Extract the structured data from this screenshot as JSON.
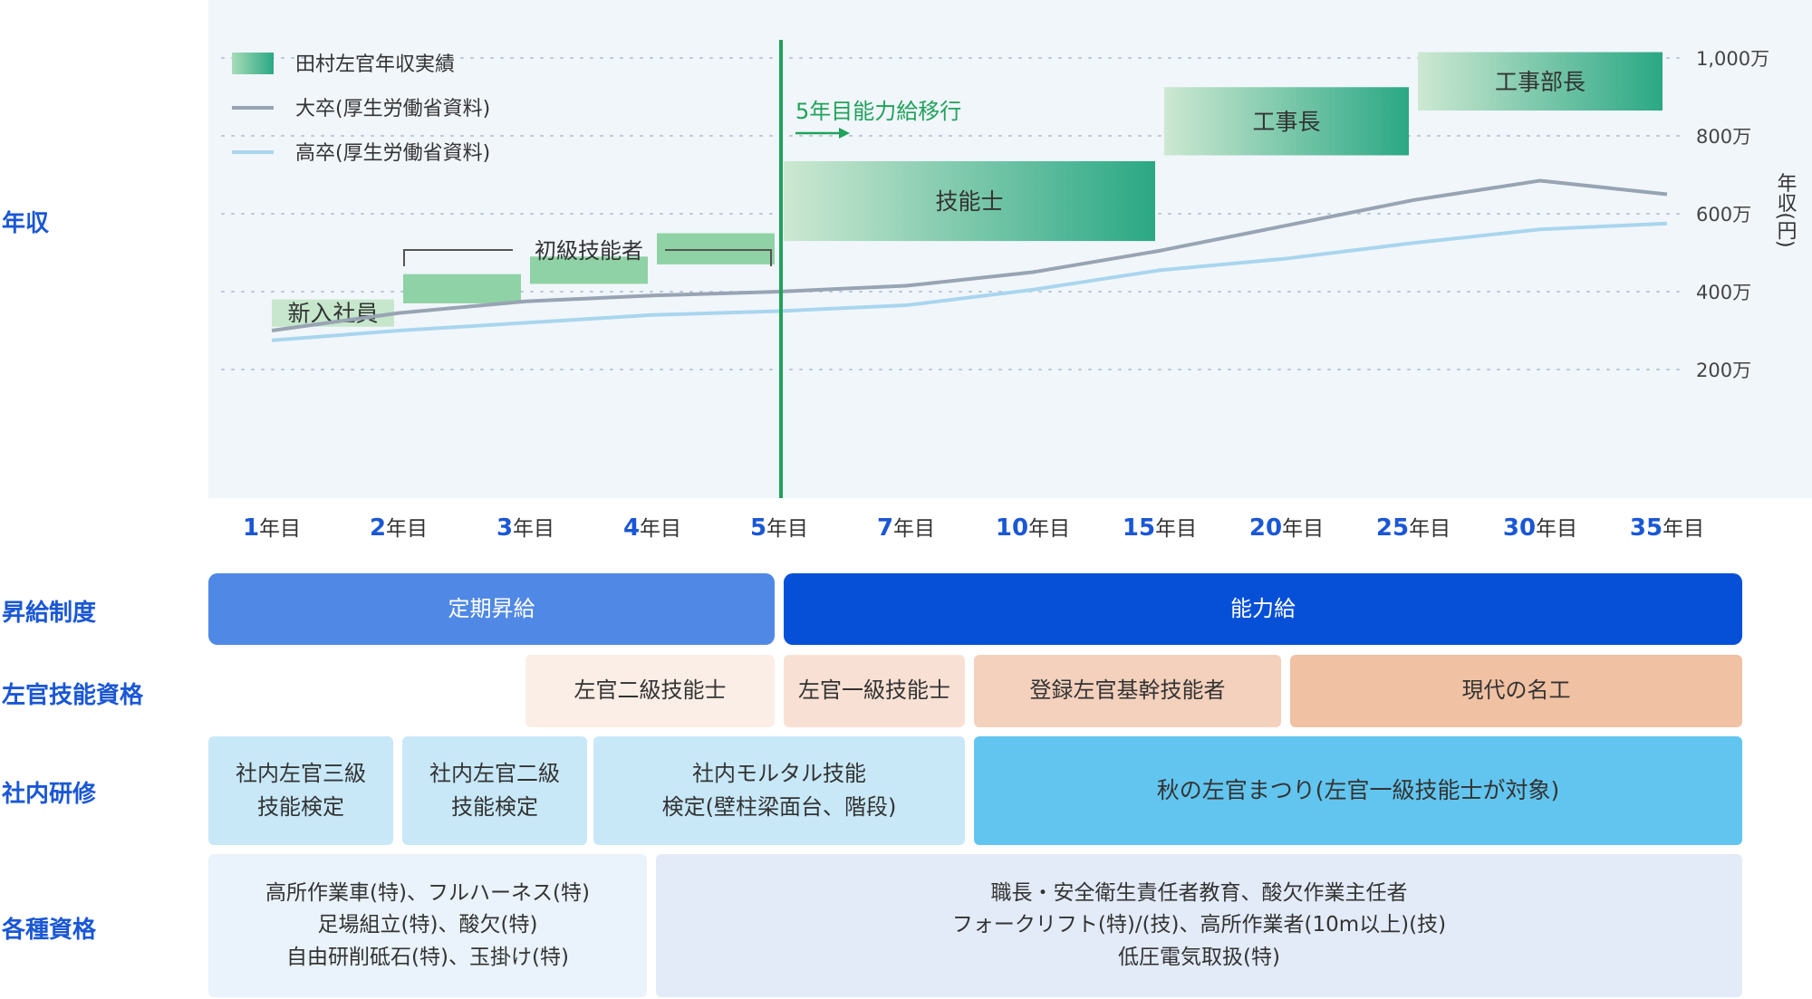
{
  "row_labels": {
    "income": "年収",
    "raise_system": "昇給制度",
    "skill_qualification": "左官技能資格",
    "training": "社内研修",
    "certifications": "各種資格"
  },
  "chart_data": {
    "type": "line",
    "x_categories": [
      "1年目",
      "2年目",
      "3年目",
      "4年目",
      "5年目",
      "7年目",
      "10年目",
      "15年目",
      "20年目",
      "25年目",
      "30年目",
      "35年目"
    ],
    "x_numbers": [
      "1",
      "2",
      "3",
      "4",
      "5",
      "7",
      "10",
      "15",
      "20",
      "25",
      "30",
      "35"
    ],
    "x_suffix": "年目",
    "y_ticks": [
      "200万",
      "400万",
      "600万",
      "800万",
      "1,000万"
    ],
    "y_tick_values": [
      200,
      400,
      600,
      800,
      1000
    ],
    "ylim": [
      100,
      1100
    ],
    "ylabel": "年収(円)",
    "grid": "dotted horizontal",
    "legend_position": "top-left",
    "legend": [
      {
        "name": "田村左官年収実績",
        "color": "#58b98a"
      },
      {
        "name": "大卒(厚生労働省資料)",
        "color": "#98a4b3"
      },
      {
        "name": "高卒(厚生労働省資料)",
        "color": "#a9d5ee"
      }
    ],
    "series": [
      {
        "name": "大卒(厚生労働省資料)",
        "color": "#98a4b3",
        "values": [
          300,
          345,
          375,
          390,
          400,
          415,
          450,
          505,
          570,
          635,
          685,
          650
        ]
      },
      {
        "name": "高卒(厚生労働省資料)",
        "color": "#a9d5ee",
        "values": [
          275,
          300,
          320,
          340,
          350,
          365,
          405,
          455,
          485,
          525,
          560,
          575
        ]
      }
    ],
    "tamura_ranges": [
      {
        "label": "新入社員",
        "x_from": "1年目",
        "x_to": "2年目",
        "low": 310,
        "high": 380
      },
      {
        "label": "",
        "x_from": "2年目",
        "x_to": "3年目",
        "low": 370,
        "high": 445
      },
      {
        "label": "",
        "x_from": "3年目",
        "x_to": "4年目",
        "low": 420,
        "high": 490
      },
      {
        "label": "",
        "x_from": "4年目",
        "x_to": "5年目",
        "low": 470,
        "high": 550
      },
      {
        "label": "技能士",
        "x_from": "5年目",
        "x_to": "15年目",
        "low": 530,
        "high": 735
      },
      {
        "label": "工事長",
        "x_from": "15年目",
        "x_to": "25年目",
        "low": 750,
        "high": 925
      },
      {
        "label": "工事部長",
        "x_from": "25年目",
        "x_to": "35年目",
        "low": 865,
        "high": 1015
      }
    ],
    "bracket_label": "初級技能者",
    "milestone_label": "5年目能力給移行",
    "milestone_x": "5年目"
  },
  "raise_system": [
    {
      "label": "定期昇給",
      "color": "#5088e5"
    },
    {
      "label": "能力給",
      "color": "#0650d8"
    }
  ],
  "skill_qualifications": [
    {
      "label": "左官二級技能士",
      "color": "#fbeee6"
    },
    {
      "label": "左官一級技能士",
      "color": "#f8e1d4"
    },
    {
      "label": "登録左官基幹技能者",
      "color": "#f4d1bd"
    },
    {
      "label": "現代の名工",
      "color": "#f1c1a3"
    }
  ],
  "training": [
    {
      "lines": [
        "社内左官三級",
        "技能検定"
      ],
      "color": "#c8e8f8"
    },
    {
      "lines": [
        "社内左官二級",
        "技能検定"
      ],
      "color": "#c8e8f8"
    },
    {
      "lines": [
        "社内モルタル技能",
        "検定(壁柱梁面台、階段)"
      ],
      "color": "#c8e8f8"
    },
    {
      "lines": [
        "秋の左官まつり(左官一級技能士が対象)"
      ],
      "color": "#62c5ef"
    }
  ],
  "certifications": [
    {
      "lines": [
        "高所作業車(特)、フルハーネス(特)",
        "足場組立(特)、酸欠(特)",
        "自由研削砥石(特)、玉掛け(特)"
      ],
      "color": "#eaf3fb"
    },
    {
      "lines": [
        "職長・安全衛生責任者教育、酸欠作業主任者",
        "フォークリフト(特)/(技)、高所作業者(10m以上)(技)",
        "低圧電気取扱(特)"
      ],
      "color": "#e3ebf8"
    }
  ]
}
